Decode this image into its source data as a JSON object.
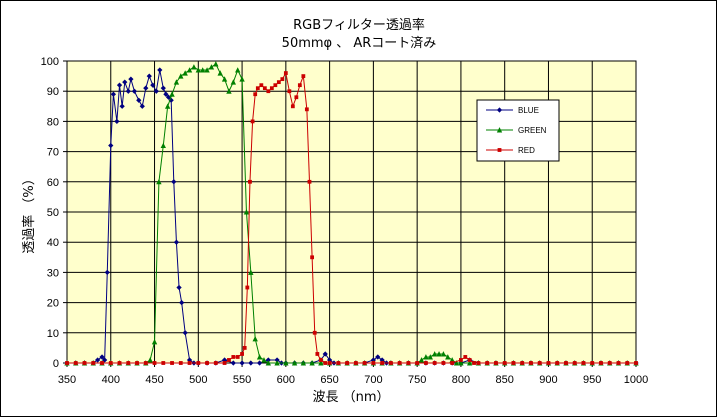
{
  "chart_data": {
    "type": "line",
    "title": "RGBフィルター透過率",
    "subtitle": "50mmφ 、 ARコート済み",
    "xlabel": "波長 （nm）",
    "ylabel": "透過率 （%）",
    "xlim": [
      350,
      1000
    ],
    "ylim": [
      0,
      100
    ],
    "x_ticks": [
      "350",
      "400",
      "450",
      "500",
      "550",
      "600",
      "650",
      "700",
      "750",
      "800",
      "850",
      "900",
      "950",
      "1000"
    ],
    "y_ticks": [
      "0",
      "10",
      "20",
      "30",
      "40",
      "50",
      "60",
      "70",
      "80",
      "90",
      "100"
    ],
    "grid": true,
    "legend_position": "right",
    "series": [
      {
        "name": "BLUE",
        "color": "#000080",
        "marker": "diamond",
        "points": [
          [
            350,
            0
          ],
          [
            360,
            0
          ],
          [
            370,
            0
          ],
          [
            380,
            0
          ],
          [
            385,
            1
          ],
          [
            390,
            2
          ],
          [
            393,
            1
          ],
          [
            396,
            30
          ],
          [
            400,
            72
          ],
          [
            403,
            89
          ],
          [
            407,
            80
          ],
          [
            410,
            92
          ],
          [
            413,
            85
          ],
          [
            416,
            93
          ],
          [
            420,
            90
          ],
          [
            423,
            94
          ],
          [
            427,
            90
          ],
          [
            432,
            87
          ],
          [
            436,
            85
          ],
          [
            440,
            91
          ],
          [
            444,
            95
          ],
          [
            448,
            92
          ],
          [
            452,
            90
          ],
          [
            456,
            97
          ],
          [
            460,
            91
          ],
          [
            463,
            89
          ],
          [
            466,
            88
          ],
          [
            469,
            87
          ],
          [
            472,
            60
          ],
          [
            475,
            40
          ],
          [
            478,
            25
          ],
          [
            481,
            20
          ],
          [
            485,
            10
          ],
          [
            490,
            1
          ],
          [
            495,
            0
          ],
          [
            500,
            0
          ],
          [
            510,
            0
          ],
          [
            520,
            0
          ],
          [
            530,
            1
          ],
          [
            540,
            0
          ],
          [
            550,
            0
          ],
          [
            560,
            0
          ],
          [
            570,
            0
          ],
          [
            580,
            1
          ],
          [
            590,
            1
          ],
          [
            595,
            0
          ],
          [
            600,
            0
          ],
          [
            610,
            0
          ],
          [
            620,
            0
          ],
          [
            630,
            0
          ],
          [
            640,
            1
          ],
          [
            645,
            3
          ],
          [
            650,
            1
          ],
          [
            655,
            0
          ],
          [
            660,
            0
          ],
          [
            670,
            0
          ],
          [
            680,
            0
          ],
          [
            690,
            0
          ],
          [
            700,
            1
          ],
          [
            705,
            2
          ],
          [
            710,
            1
          ],
          [
            715,
            0
          ],
          [
            720,
            0
          ],
          [
            730,
            0
          ],
          [
            740,
            0
          ],
          [
            750,
            0
          ],
          [
            760,
            0
          ],
          [
            770,
            0
          ],
          [
            780,
            0
          ],
          [
            790,
            0
          ],
          [
            800,
            0
          ],
          [
            810,
            1
          ],
          [
            820,
            0
          ],
          [
            830,
            0
          ],
          [
            840,
            0
          ],
          [
            850,
            0
          ],
          [
            860,
            0
          ],
          [
            870,
            0
          ],
          [
            880,
            0
          ],
          [
            890,
            0
          ],
          [
            900,
            0
          ],
          [
            910,
            0
          ],
          [
            920,
            0
          ],
          [
            930,
            0
          ],
          [
            940,
            0
          ],
          [
            950,
            0
          ],
          [
            960,
            0
          ],
          [
            970,
            0
          ],
          [
            980,
            0
          ],
          [
            990,
            0
          ],
          [
            1000,
            0
          ]
        ]
      },
      {
        "name": "GREEN",
        "color": "#008000",
        "marker": "triangle",
        "points": [
          [
            350,
            0
          ],
          [
            360,
            0
          ],
          [
            370,
            0
          ],
          [
            380,
            0
          ],
          [
            390,
            0
          ],
          [
            400,
            0
          ],
          [
            410,
            0
          ],
          [
            420,
            0
          ],
          [
            430,
            0
          ],
          [
            440,
            0
          ],
          [
            445,
            1
          ],
          [
            450,
            7
          ],
          [
            455,
            60
          ],
          [
            460,
            72
          ],
          [
            465,
            85
          ],
          [
            470,
            89
          ],
          [
            475,
            93
          ],
          [
            480,
            95
          ],
          [
            485,
            96
          ],
          [
            490,
            97
          ],
          [
            495,
            98
          ],
          [
            500,
            97
          ],
          [
            505,
            97
          ],
          [
            510,
            97
          ],
          [
            515,
            98
          ],
          [
            520,
            99
          ],
          [
            525,
            96
          ],
          [
            530,
            94
          ],
          [
            535,
            90
          ],
          [
            540,
            93
          ],
          [
            545,
            97
          ],
          [
            550,
            94
          ],
          [
            555,
            50
          ],
          [
            560,
            30
          ],
          [
            565,
            8
          ],
          [
            570,
            2
          ],
          [
            575,
            1
          ],
          [
            580,
            0
          ],
          [
            590,
            0
          ],
          [
            600,
            0
          ],
          [
            610,
            0
          ],
          [
            620,
            0
          ],
          [
            630,
            0
          ],
          [
            640,
            0
          ],
          [
            650,
            0
          ],
          [
            660,
            0
          ],
          [
            670,
            0
          ],
          [
            680,
            0
          ],
          [
            690,
            0
          ],
          [
            700,
            0
          ],
          [
            710,
            0
          ],
          [
            720,
            0
          ],
          [
            730,
            0
          ],
          [
            740,
            0
          ],
          [
            750,
            0
          ],
          [
            755,
            1
          ],
          [
            760,
            2
          ],
          [
            765,
            2
          ],
          [
            770,
            3
          ],
          [
            775,
            3
          ],
          [
            780,
            3
          ],
          [
            785,
            2
          ],
          [
            790,
            1
          ],
          [
            795,
            0
          ],
          [
            800,
            0
          ],
          [
            810,
            0
          ],
          [
            820,
            0
          ],
          [
            830,
            0
          ],
          [
            840,
            0
          ],
          [
            850,
            0
          ],
          [
            860,
            0
          ],
          [
            870,
            0
          ],
          [
            880,
            0
          ],
          [
            890,
            0
          ],
          [
            900,
            0
          ],
          [
            910,
            0
          ],
          [
            920,
            0
          ],
          [
            930,
            0
          ],
          [
            940,
            0
          ],
          [
            950,
            0
          ],
          [
            960,
            0
          ],
          [
            970,
            0
          ],
          [
            980,
            0
          ],
          [
            990,
            0
          ],
          [
            1000,
            0
          ]
        ]
      },
      {
        "name": "RED",
        "color": "#cc0000",
        "marker": "square",
        "points": [
          [
            350,
            0
          ],
          [
            360,
            0
          ],
          [
            370,
            0
          ],
          [
            380,
            0
          ],
          [
            390,
            0
          ],
          [
            400,
            0
          ],
          [
            410,
            0
          ],
          [
            420,
            0
          ],
          [
            430,
            0
          ],
          [
            440,
            0
          ],
          [
            450,
            0
          ],
          [
            460,
            0
          ],
          [
            470,
            0
          ],
          [
            480,
            0
          ],
          [
            490,
            0
          ],
          [
            500,
            0
          ],
          [
            510,
            0
          ],
          [
            520,
            0
          ],
          [
            530,
            0
          ],
          [
            535,
            1
          ],
          [
            540,
            2
          ],
          [
            545,
            2
          ],
          [
            550,
            3
          ],
          [
            553,
            5
          ],
          [
            556,
            25
          ],
          [
            559,
            60
          ],
          [
            562,
            80
          ],
          [
            565,
            89
          ],
          [
            568,
            91
          ],
          [
            572,
            92
          ],
          [
            576,
            91
          ],
          [
            580,
            90
          ],
          [
            584,
            91
          ],
          [
            588,
            92
          ],
          [
            592,
            93
          ],
          [
            596,
            94
          ],
          [
            600,
            96
          ],
          [
            604,
            90
          ],
          [
            608,
            85
          ],
          [
            612,
            88
          ],
          [
            616,
            92
          ],
          [
            620,
            95
          ],
          [
            624,
            84
          ],
          [
            627,
            60
          ],
          [
            630,
            35
          ],
          [
            633,
            10
          ],
          [
            636,
            3
          ],
          [
            640,
            1
          ],
          [
            645,
            0
          ],
          [
            650,
            0
          ],
          [
            660,
            0
          ],
          [
            670,
            0
          ],
          [
            680,
            0
          ],
          [
            690,
            0
          ],
          [
            700,
            0
          ],
          [
            710,
            0
          ],
          [
            720,
            0
          ],
          [
            730,
            0
          ],
          [
            740,
            0
          ],
          [
            750,
            0
          ],
          [
            760,
            0
          ],
          [
            770,
            0
          ],
          [
            780,
            0
          ],
          [
            790,
            0
          ],
          [
            800,
            1
          ],
          [
            805,
            2
          ],
          [
            810,
            1
          ],
          [
            815,
            0
          ],
          [
            820,
            0
          ],
          [
            830,
            0
          ],
          [
            840,
            0
          ],
          [
            850,
            0
          ],
          [
            860,
            0
          ],
          [
            870,
            0
          ],
          [
            880,
            0
          ],
          [
            890,
            0
          ],
          [
            900,
            0
          ],
          [
            910,
            0
          ],
          [
            920,
            0
          ],
          [
            930,
            0
          ],
          [
            940,
            0
          ],
          [
            950,
            0
          ],
          [
            960,
            0
          ],
          [
            970,
            0
          ],
          [
            980,
            0
          ],
          [
            990,
            0
          ],
          [
            1000,
            0
          ]
        ]
      }
    ]
  },
  "colors": {
    "plot_background": "#ffffcc",
    "grid": "#000000"
  }
}
